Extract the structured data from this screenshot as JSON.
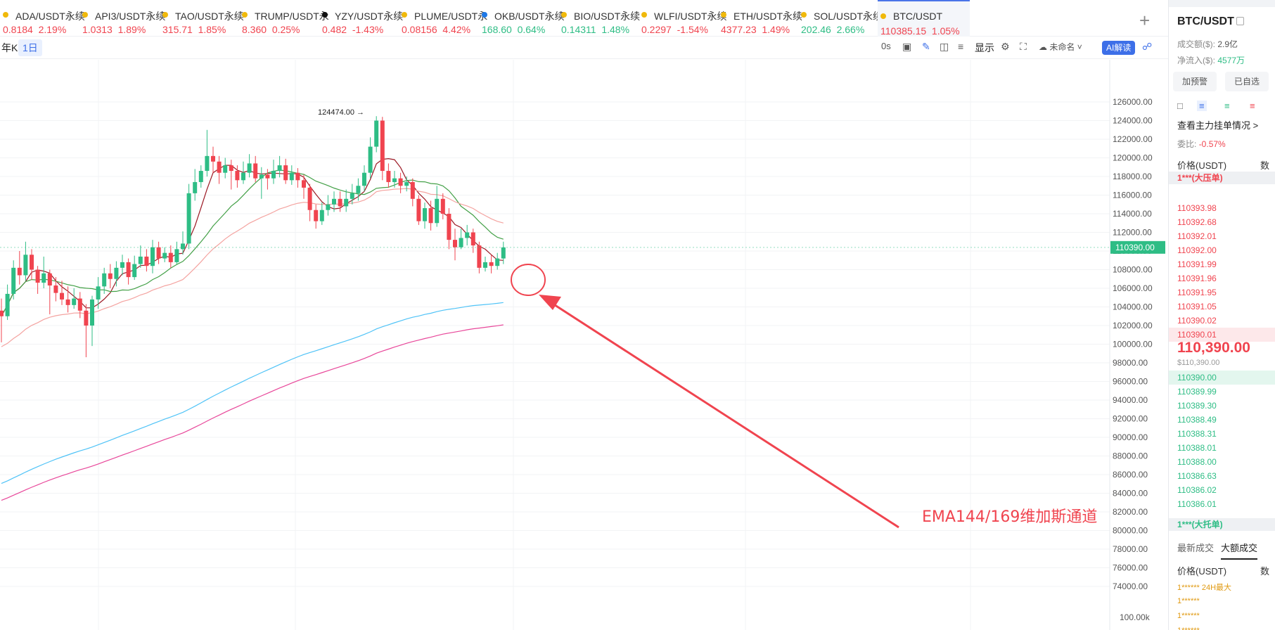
{
  "ticker": [
    {
      "symbol": "ADA/USDT永续",
      "price": "0.8184",
      "change": "2.19%",
      "dir": "down",
      "icon": "ada-coin-icon"
    },
    {
      "symbol": "API3/USDT永续",
      "price": "1.0313",
      "change": "1.89%",
      "dir": "down",
      "icon": "api3-coin-icon"
    },
    {
      "symbol": "TAO/USDT永续",
      "price": "315.71",
      "change": "1.85%",
      "dir": "down",
      "icon": "tao-coin-icon"
    },
    {
      "symbol": "TRUMP/USDT永",
      "price": "8.360",
      "change": "0.25%",
      "dir": "down",
      "icon": "trump-coin-icon"
    },
    {
      "symbol": "YZY/USDT永续",
      "price": "0.482",
      "change": "-1.43%",
      "dir": "down",
      "icon": "yzy-coin-icon"
    },
    {
      "symbol": "PLUME/USDT永",
      "price": "0.08156",
      "change": "4.42%",
      "dir": "down",
      "icon": "plume-coin-icon"
    },
    {
      "symbol": "OKB/USDT永续",
      "price": "168.60",
      "change": "0.64%",
      "dir": "up",
      "icon": "okb-coin-icon"
    },
    {
      "symbol": "BIO/USDT永续",
      "price": "0.14311",
      "change": "1.48%",
      "dir": "up",
      "icon": "bio-coin-icon"
    },
    {
      "symbol": "WLFI/USDT永续",
      "price": "0.2297",
      "change": "-1.54%",
      "dir": "down",
      "icon": "wlfi-coin-icon"
    },
    {
      "symbol": "ETH/USDT永续",
      "price": "4377.23",
      "change": "1.49%",
      "dir": "down",
      "icon": "eth-coin-icon"
    },
    {
      "symbol": "SOL/USDT永续",
      "price": "202.46",
      "change": "2.66%",
      "dir": "up",
      "icon": "sol-coin-icon"
    },
    {
      "symbol": "BTC/USDT",
      "price": "110385.15",
      "change": "1.05%",
      "dir": "down",
      "icon": "btc-coin-icon",
      "active": true
    }
  ],
  "toolbar": {
    "tf_year": "年K",
    "tf_day": "1日",
    "countdown": "0s",
    "display_label": "显示",
    "unnamed_label": "未命名",
    "ai_label": "AI解读"
  },
  "chart_data": {
    "type": "candlestick",
    "y_axis_ticks": [
      "126000.00",
      "124000.00",
      "122000.00",
      "120000.00",
      "118000.00",
      "116000.00",
      "114000.00",
      "112000.00",
      "110000.00",
      "108000.00",
      "106000.00",
      "104000.00",
      "102000.00",
      "100000.00",
      "98000.00",
      "96000.00",
      "94000.00",
      "92000.00",
      "90000.00",
      "88000.00",
      "86000.00",
      "84000.00",
      "82000.00",
      "80000.00",
      "78000.00",
      "76000.00",
      "74000.00"
    ],
    "ylim": [
      72000,
      128000
    ],
    "current_price_tag": "110390.00",
    "high_label": "124474.00 →",
    "annotation": "EMA144/169维加斯通道",
    "volume_axis_label": "100.00k",
    "candles": [
      [
        103600,
        103000,
        104900,
        100200
      ],
      [
        103000,
        105400,
        106400,
        102600
      ],
      [
        105400,
        108200,
        109000,
        104800
      ],
      [
        108200,
        107400,
        110000,
        106400
      ],
      [
        107400,
        109600,
        111000,
        106800
      ],
      [
        109600,
        108000,
        110200,
        106900
      ],
      [
        108000,
        106600,
        108400,
        105400
      ],
      [
        106600,
        107600,
        109400,
        106000
      ],
      [
        107600,
        106300,
        108000,
        103200
      ],
      [
        106300,
        105500,
        107200,
        104600
      ],
      [
        105500,
        104800,
        106800,
        104200
      ],
      [
        104800,
        104200,
        106200,
        103400
      ],
      [
        104200,
        104900,
        106000,
        103800
      ],
      [
        104900,
        103600,
        105600,
        102800
      ],
      [
        103600,
        102000,
        104300,
        98600
      ],
      [
        102000,
        104800,
        105200,
        99800
      ],
      [
        104800,
        106200,
        107200,
        103800
      ],
      [
        106200,
        107600,
        108200,
        105400
      ],
      [
        107600,
        107000,
        108600,
        106000
      ],
      [
        107000,
        108200,
        108900,
        106200
      ],
      [
        108200,
        108800,
        109600,
        107400
      ],
      [
        108800,
        107200,
        109200,
        106400
      ],
      [
        107200,
        108600,
        109500,
        106900
      ],
      [
        108600,
        109400,
        110600,
        108200
      ],
      [
        109400,
        108400,
        110200,
        107800
      ],
      [
        108400,
        110400,
        111200,
        107600
      ],
      [
        110400,
        109200,
        111000,
        108600
      ],
      [
        109200,
        109800,
        110400,
        108800
      ],
      [
        109800,
        108800,
        110600,
        108200
      ],
      [
        108800,
        110200,
        111000,
        108600
      ],
      [
        110200,
        110800,
        112100,
        109600
      ],
      [
        110800,
        116200,
        117200,
        110200
      ],
      [
        116200,
        117400,
        118800,
        115400
      ],
      [
        117400,
        118600,
        119200,
        116800
      ],
      [
        118600,
        120200,
        123000,
        118000
      ],
      [
        120200,
        119600,
        121200,
        118400
      ],
      [
        119600,
        118400,
        120200,
        117200
      ],
      [
        118400,
        119200,
        120000,
        117800
      ],
      [
        119200,
        118600,
        119800,
        116600
      ],
      [
        118600,
        117600,
        119200,
        116800
      ],
      [
        117600,
        118400,
        119600,
        117200
      ],
      [
        118400,
        119400,
        120400,
        117900
      ],
      [
        119400,
        117800,
        120200,
        117400
      ],
      [
        117800,
        118200,
        119000,
        115600
      ],
      [
        118200,
        117800,
        118800,
        116600
      ],
      [
        117800,
        118600,
        119800,
        117200
      ],
      [
        118600,
        119200,
        120200,
        117900
      ],
      [
        119200,
        117600,
        119900,
        117200
      ],
      [
        117600,
        118400,
        119200,
        117100
      ],
      [
        118400,
        117600,
        118900,
        116800
      ],
      [
        117600,
        116800,
        118200,
        115600
      ],
      [
        116800,
        114400,
        117200,
        113200
      ],
      [
        114400,
        113200,
        115000,
        112400
      ],
      [
        113200,
        114400,
        115200,
        112800
      ],
      [
        114400,
        115000,
        116000,
        113800
      ],
      [
        115000,
        115600,
        116400,
        114200
      ],
      [
        115600,
        114800,
        116400,
        114200
      ],
      [
        114800,
        115600,
        116600,
        114200
      ],
      [
        115600,
        116200,
        117200,
        115000
      ],
      [
        116200,
        117000,
        117800,
        115400
      ],
      [
        117000,
        118400,
        119200,
        116400
      ],
      [
        118400,
        121200,
        122200,
        117800
      ],
      [
        121200,
        124000,
        124474,
        120600
      ],
      [
        124000,
        118600,
        124400,
        117600
      ],
      [
        118600,
        117400,
        119400,
        116800
      ],
      [
        117400,
        117800,
        118600,
        116800
      ],
      [
        117800,
        117000,
        118400,
        116200
      ],
      [
        117000,
        117400,
        118000,
        116400
      ],
      [
        117400,
        115600,
        117800,
        114800
      ],
      [
        115600,
        113200,
        116000,
        112800
      ],
      [
        113200,
        114600,
        115200,
        112400
      ],
      [
        114600,
        113000,
        115400,
        112200
      ],
      [
        113000,
        115600,
        117000,
        112600
      ],
      [
        115600,
        114000,
        116200,
        113400
      ],
      [
        114000,
        111200,
        114600,
        110200
      ],
      [
        111200,
        110400,
        112400,
        109000
      ],
      [
        110400,
        111400,
        112400,
        110200
      ],
      [
        111400,
        112000,
        112800,
        110600
      ],
      [
        112000,
        110600,
        112400,
        109800
      ],
      [
        110600,
        108200,
        111000,
        107600
      ],
      [
        108200,
        108800,
        109400,
        107800
      ],
      [
        108800,
        108400,
        109600,
        107600
      ],
      [
        108400,
        109200,
        109800,
        108000
      ],
      [
        109200,
        110390,
        111000,
        108600
      ]
    ],
    "series": [
      {
        "name": "ma_red",
        "color": "#9c1a25"
      },
      {
        "name": "ma_green",
        "color": "#43a047"
      },
      {
        "name": "ma_pink",
        "color": "#f4a3a0"
      },
      {
        "name": "ema144",
        "color": "#4fc3f7"
      },
      {
        "name": "ema169",
        "color": "#e8479a"
      }
    ]
  },
  "panel": {
    "title": "BTC/USDT",
    "turnover_label": "成交额($):",
    "turnover_value": "2.9亿",
    "inflow_label": "净流入($):",
    "inflow_value": "4577万",
    "alert_btn": "加预警",
    "fav_btn": "已自选",
    "depth_link": "查看主力挂单情况 >",
    "ratio_label": "委比:",
    "ratio_value": "-0.57%",
    "price_header": "价格(USDT)",
    "qty_header": "数",
    "big_ask": "1***(大压单)",
    "asks": [
      "110393.98",
      "110392.68",
      "110392.01",
      "110392.00",
      "110391.99",
      "110391.96",
      "110391.95",
      "110391.05",
      "110390.02",
      "110390.01"
    ],
    "mid_price": "110,390.00",
    "mid_usd": "$110,390.00",
    "bids": [
      "110390.00",
      "110389.99",
      "110389.30",
      "110388.49",
      "110388.31",
      "110388.01",
      "110388.00",
      "110386.63",
      "110386.02",
      "110386.01"
    ],
    "big_bid": "1***(大托单)",
    "tab_recent": "最新成交",
    "tab_large": "大额成交",
    "trade_price_header": "价格(USDT)",
    "trade_qty_header": "数",
    "trade_first": "1****** 24H最大",
    "trade_rows": [
      "1******",
      "1******",
      "1******"
    ]
  }
}
